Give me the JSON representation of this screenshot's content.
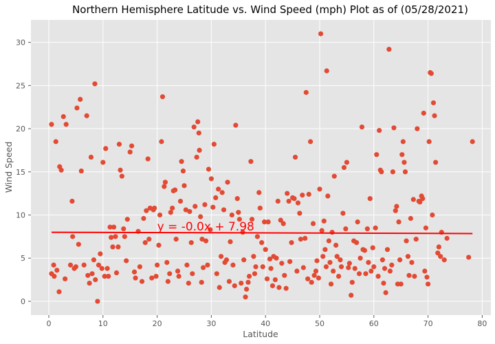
{
  "chart_data": {
    "type": "scatter",
    "title": "Northern Hemisphere Latitude vs. Wind Speed (mph) Plot as of (05/28/2021)",
    "xlabel": "Latitude",
    "ylabel": "Wind Speed",
    "xlim": [
      -3.3,
      81.6
    ],
    "ylim": [
      -1.6,
      32.6
    ],
    "xticks": [
      0,
      10,
      20,
      30,
      40,
      50,
      60,
      70,
      80
    ],
    "yticks": [
      0,
      5,
      10,
      15,
      20,
      25,
      30
    ],
    "grid": true,
    "background": "#e5e5e5",
    "point_color": "#e24a33",
    "line_color": "#ff0000",
    "regression": {
      "slope": -0.0,
      "intercept": 7.98,
      "x_range": [
        0.5,
        78.2
      ],
      "y_range": [
        8.0,
        7.85
      ]
    },
    "annotation": {
      "text": "y = -0.0x + 7.98",
      "x": 20,
      "y": 8.7
    },
    "points": [
      [
        0.5,
        20.5
      ],
      [
        0.5,
        3.2
      ],
      [
        0.9,
        4.2
      ],
      [
        1.0,
        2.9
      ],
      [
        1.3,
        18.5
      ],
      [
        1.5,
        3.6
      ],
      [
        1.9,
        1.1
      ],
      [
        2.0,
        15.6
      ],
      [
        2.3,
        15.2
      ],
      [
        2.7,
        21.4
      ],
      [
        3.0,
        2.6
      ],
      [
        3.2,
        20.5
      ],
      [
        4.0,
        4.2
      ],
      [
        4.3,
        11.6
      ],
      [
        4.4,
        7.5
      ],
      [
        4.7,
        3.8
      ],
      [
        5.0,
        4.0
      ],
      [
        5.2,
        22.4
      ],
      [
        5.5,
        6.6
      ],
      [
        5.8,
        23.4
      ],
      [
        6.0,
        15.1
      ],
      [
        6.5,
        4.2
      ],
      [
        7.0,
        21.5
      ],
      [
        7.2,
        3.0
      ],
      [
        7.5,
        2.1
      ],
      [
        7.8,
        16.7
      ],
      [
        8.0,
        3.2
      ],
      [
        8.3,
        4.8
      ],
      [
        8.5,
        25.2
      ],
      [
        8.6,
        2.5
      ],
      [
        9.0,
        0.0
      ],
      [
        9.2,
        4.2
      ],
      [
        9.5,
        5.5
      ],
      [
        9.8,
        3.8
      ],
      [
        10.0,
        16.1
      ],
      [
        10.3,
        2.9
      ],
      [
        10.5,
        17.7
      ],
      [
        10.8,
        3.8
      ],
      [
        11.0,
        2.9
      ],
      [
        11.3,
        8.6
      ],
      [
        11.5,
        7.4
      ],
      [
        11.8,
        6.3
      ],
      [
        12.0,
        8.6
      ],
      [
        12.3,
        7.5
      ],
      [
        12.5,
        3.3
      ],
      [
        12.8,
        6.3
      ],
      [
        13.0,
        18.2
      ],
      [
        13.2,
        15.2
      ],
      [
        13.5,
        14.5
      ],
      [
        13.8,
        8.4
      ],
      [
        14.0,
        7.5
      ],
      [
        14.3,
        4.7
      ],
      [
        14.5,
        9.5
      ],
      [
        15.0,
        17.3
      ],
      [
        15.3,
        18.0
      ],
      [
        15.8,
        3.4
      ],
      [
        16.0,
        2.7
      ],
      [
        16.5,
        8.1
      ],
      [
        16.8,
        4.0
      ],
      [
        17.2,
        2.3
      ],
      [
        17.5,
        9.6
      ],
      [
        17.8,
        6.8
      ],
      [
        18.0,
        10.5
      ],
      [
        18.3,
        16.5
      ],
      [
        18.5,
        7.2
      ],
      [
        18.7,
        10.8
      ],
      [
        19.0,
        2.7
      ],
      [
        19.3,
        10.6
      ],
      [
        19.5,
        10.8
      ],
      [
        19.8,
        2.9
      ],
      [
        20.0,
        4.2
      ],
      [
        20.3,
        6.5
      ],
      [
        20.5,
        10.0
      ],
      [
        20.8,
        18.5
      ],
      [
        21.0,
        23.7
      ],
      [
        21.3,
        13.3
      ],
      [
        21.5,
        13.8
      ],
      [
        21.8,
        4.5
      ],
      [
        22.0,
        2.3
      ],
      [
        22.3,
        3.2
      ],
      [
        22.5,
        10.3
      ],
      [
        22.8,
        10.8
      ],
      [
        23.0,
        12.8
      ],
      [
        23.3,
        12.9
      ],
      [
        23.5,
        7.2
      ],
      [
        23.8,
        3.5
      ],
      [
        24.0,
        2.9
      ],
      [
        24.3,
        11.6
      ],
      [
        24.5,
        16.2
      ],
      [
        24.8,
        15.1
      ],
      [
        25.0,
        13.4
      ],
      [
        25.3,
        10.6
      ],
      [
        25.5,
        4.2
      ],
      [
        25.8,
        2.1
      ],
      [
        26.0,
        10.4
      ],
      [
        26.3,
        6.8
      ],
      [
        26.5,
        3.2
      ],
      [
        26.8,
        20.2
      ],
      [
        27.0,
        11.0
      ],
      [
        27.3,
        16.7
      ],
      [
        27.5,
        20.8
      ],
      [
        27.7,
        19.5
      ],
      [
        27.8,
        17.5
      ],
      [
        28.0,
        9.8
      ],
      [
        28.2,
        2.2
      ],
      [
        28.3,
        7.2
      ],
      [
        28.5,
        3.9
      ],
      [
        28.8,
        11.2
      ],
      [
        29.0,
        7.0
      ],
      [
        29.3,
        4.2
      ],
      [
        29.5,
        15.3
      ],
      [
        29.8,
        8.3
      ],
      [
        30.0,
        14.2
      ],
      [
        30.3,
        10.9
      ],
      [
        30.5,
        18.2
      ],
      [
        30.8,
        12.0
      ],
      [
        31.0,
        3.2
      ],
      [
        31.3,
        13.0
      ],
      [
        31.5,
        1.6
      ],
      [
        31.8,
        5.2
      ],
      [
        32.0,
        12.6
      ],
      [
        32.3,
        10.6
      ],
      [
        32.5,
        4.5
      ],
      [
        32.8,
        4.8
      ],
      [
        33.0,
        13.8
      ],
      [
        33.3,
        2.3
      ],
      [
        33.5,
        6.9
      ],
      [
        33.8,
        10.0
      ],
      [
        34.0,
        4.2
      ],
      [
        34.3,
        1.8
      ],
      [
        34.5,
        20.4
      ],
      [
        34.8,
        11.9
      ],
      [
        35.0,
        10.3
      ],
      [
        35.2,
        9.5
      ],
      [
        35.5,
        2.1
      ],
      [
        35.8,
        8.0
      ],
      [
        36.0,
        4.8
      ],
      [
        36.3,
        0.5
      ],
      [
        36.5,
        1.4
      ],
      [
        36.8,
        2.2
      ],
      [
        37.0,
        2.9
      ],
      [
        37.3,
        16.2
      ],
      [
        37.5,
        9.5
      ],
      [
        37.8,
        5.2
      ],
      [
        38.0,
        3.2
      ],
      [
        38.2,
        4.0
      ],
      [
        38.5,
        7.5
      ],
      [
        38.8,
        12.6
      ],
      [
        39.0,
        10.8
      ],
      [
        39.3,
        6.8
      ],
      [
        39.5,
        4.0
      ],
      [
        39.8,
        9.2
      ],
      [
        40.0,
        6.0
      ],
      [
        40.3,
        2.6
      ],
      [
        40.5,
        9.2
      ],
      [
        40.8,
        4.9
      ],
      [
        41.0,
        3.8
      ],
      [
        41.3,
        1.8
      ],
      [
        41.5,
        5.2
      ],
      [
        41.8,
        2.5
      ],
      [
        42.0,
        5.0
      ],
      [
        42.3,
        11.6
      ],
      [
        42.5,
        1.6
      ],
      [
        42.8,
        9.4
      ],
      [
        43.0,
        4.4
      ],
      [
        43.3,
        9.0
      ],
      [
        43.5,
        3.0
      ],
      [
        43.8,
        1.5
      ],
      [
        44.0,
        12.5
      ],
      [
        44.3,
        11.6
      ],
      [
        44.5,
        4.6
      ],
      [
        44.8,
        6.8
      ],
      [
        45.0,
        12.0
      ],
      [
        45.3,
        11.9
      ],
      [
        45.5,
        16.7
      ],
      [
        45.8,
        3.5
      ],
      [
        46.0,
        11.4
      ],
      [
        46.3,
        10.2
      ],
      [
        46.5,
        7.2
      ],
      [
        46.8,
        12.3
      ],
      [
        47.0,
        3.9
      ],
      [
        47.3,
        7.3
      ],
      [
        47.5,
        24.2
      ],
      [
        47.8,
        2.6
      ],
      [
        48.0,
        12.4
      ],
      [
        48.3,
        18.5
      ],
      [
        48.5,
        2.2
      ],
      [
        48.8,
        9.0
      ],
      [
        49.0,
        3.0
      ],
      [
        49.3,
        3.5
      ],
      [
        49.5,
        4.7
      ],
      [
        49.8,
        2.7
      ],
      [
        50.0,
        13.0
      ],
      [
        50.2,
        31.0
      ],
      [
        50.4,
        8.2
      ],
      [
        50.6,
        5.2
      ],
      [
        50.8,
        9.3
      ],
      [
        51.0,
        6.0
      ],
      [
        51.2,
        4.0
      ],
      [
        51.3,
        26.7
      ],
      [
        51.5,
        12.2
      ],
      [
        51.7,
        7.0
      ],
      [
        51.9,
        4.5
      ],
      [
        52.1,
        2.0
      ],
      [
        52.3,
        8.0
      ],
      [
        52.5,
        3.5
      ],
      [
        52.7,
        14.5
      ],
      [
        53.0,
        6.5
      ],
      [
        53.2,
        5.2
      ],
      [
        53.5,
        2.9
      ],
      [
        53.8,
        4.8
      ],
      [
        54.0,
        4.0
      ],
      [
        54.3,
        10.2
      ],
      [
        54.5,
        15.5
      ],
      [
        54.8,
        8.4
      ],
      [
        55.0,
        16.1
      ],
      [
        55.3,
        3.9
      ],
      [
        55.5,
        4.4
      ],
      [
        55.8,
        0.7
      ],
      [
        56.0,
        2.2
      ],
      [
        56.3,
        7.0
      ],
      [
        56.5,
        3.8
      ],
      [
        56.8,
        6.8
      ],
      [
        57.0,
        9.2
      ],
      [
        57.3,
        3.2
      ],
      [
        57.5,
        5.0
      ],
      [
        57.8,
        20.2
      ],
      [
        58.0,
        6.0
      ],
      [
        58.3,
        5.9
      ],
      [
        58.5,
        3.2
      ],
      [
        58.8,
        8.4
      ],
      [
        59.0,
        4.5
      ],
      [
        59.3,
        11.9
      ],
      [
        59.5,
        3.5
      ],
      [
        59.8,
        6.2
      ],
      [
        60.0,
        4.0
      ],
      [
        60.3,
        8.5
      ],
      [
        60.5,
        17.0
      ],
      [
        60.8,
        2.9
      ],
      [
        61.0,
        19.8
      ],
      [
        61.2,
        15.2
      ],
      [
        61.4,
        15.0
      ],
      [
        61.6,
        4.8
      ],
      [
        61.8,
        2.1
      ],
      [
        62.0,
        3.8
      ],
      [
        62.2,
        1.0
      ],
      [
        62.5,
        6.0
      ],
      [
        62.8,
        29.2
      ],
      [
        63.0,
        3.5
      ],
      [
        63.3,
        4.2
      ],
      [
        63.5,
        15.0
      ],
      [
        63.7,
        20.1
      ],
      [
        64.0,
        10.5
      ],
      [
        64.2,
        11.0
      ],
      [
        64.4,
        2.0
      ],
      [
        64.6,
        9.2
      ],
      [
        64.8,
        4.8
      ],
      [
        65.0,
        2.0
      ],
      [
        65.2,
        17.0
      ],
      [
        65.4,
        18.5
      ],
      [
        65.6,
        16.1
      ],
      [
        65.8,
        15.0
      ],
      [
        66.0,
        7.0
      ],
      [
        66.3,
        5.2
      ],
      [
        66.5,
        3.0
      ],
      [
        66.8,
        9.6
      ],
      [
        67.0,
        4.5
      ],
      [
        67.3,
        11.8
      ],
      [
        67.5,
        2.9
      ],
      [
        67.8,
        7.2
      ],
      [
        68.0,
        20.0
      ],
      [
        68.3,
        11.6
      ],
      [
        68.5,
        11.5
      ],
      [
        68.8,
        12.2
      ],
      [
        69.0,
        11.9
      ],
      [
        69.2,
        21.8
      ],
      [
        69.4,
        3.5
      ],
      [
        69.6,
        8.5
      ],
      [
        69.8,
        2.8
      ],
      [
        70.0,
        2.0
      ],
      [
        70.2,
        18.5
      ],
      [
        70.4,
        26.5
      ],
      [
        70.6,
        26.4
      ],
      [
        70.8,
        10.0
      ],
      [
        71.0,
        23.0
      ],
      [
        71.2,
        21.5
      ],
      [
        71.4,
        16.1
      ],
      [
        71.8,
        5.6
      ],
      [
        72.0,
        6.3
      ],
      [
        72.3,
        5.2
      ],
      [
        72.5,
        8.0
      ],
      [
        73.0,
        4.8
      ],
      [
        73.5,
        7.3
      ],
      [
        77.5,
        5.1
      ],
      [
        78.2,
        18.5
      ]
    ]
  }
}
